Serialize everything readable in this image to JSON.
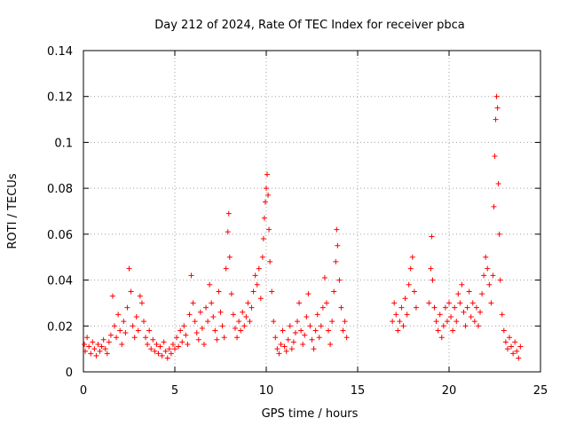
{
  "chart_data": {
    "type": "scatter",
    "title": "Day 212 of 2024, Rate Of TEC Index for receiver pbca",
    "xlabel": "GPS time / hours",
    "ylabel": "ROTI / TECUs",
    "xlim": [
      0,
      25
    ],
    "ylim": [
      0,
      0.14
    ],
    "x_ticks": [
      "0",
      "5",
      "10",
      "15",
      "20",
      "25"
    ],
    "y_ticks": [
      "0",
      "0.02",
      "0.04",
      "0.06",
      "0.08",
      "0.1",
      "0.12",
      "0.14"
    ],
    "grid": true,
    "marker": "+",
    "color": "#ff0000",
    "series": [
      {
        "name": "ROTI",
        "points": [
          [
            0.05,
            0.012
          ],
          [
            0.1,
            0.009
          ],
          [
            0.2,
            0.015
          ],
          [
            0.3,
            0.011
          ],
          [
            0.4,
            0.008
          ],
          [
            0.5,
            0.013
          ],
          [
            0.6,
            0.01
          ],
          [
            0.7,
            0.007
          ],
          [
            0.8,
            0.012
          ],
          [
            0.9,
            0.009
          ],
          [
            1.0,
            0.011
          ],
          [
            1.1,
            0.014
          ],
          [
            1.2,
            0.01
          ],
          [
            1.3,
            0.008
          ],
          [
            1.4,
            0.013
          ],
          [
            1.5,
            0.016
          ],
          [
            1.6,
            0.033
          ],
          [
            1.7,
            0.02
          ],
          [
            1.8,
            0.015
          ],
          [
            1.9,
            0.025
          ],
          [
            2.0,
            0.018
          ],
          [
            2.1,
            0.012
          ],
          [
            2.2,
            0.022
          ],
          [
            2.3,
            0.017
          ],
          [
            2.4,
            0.028
          ],
          [
            2.5,
            0.045
          ],
          [
            2.6,
            0.035
          ],
          [
            2.7,
            0.02
          ],
          [
            2.8,
            0.015
          ],
          [
            2.9,
            0.024
          ],
          [
            3.0,
            0.018
          ],
          [
            3.1,
            0.033
          ],
          [
            3.2,
            0.03
          ],
          [
            3.3,
            0.022
          ],
          [
            3.4,
            0.015
          ],
          [
            3.5,
            0.012
          ],
          [
            3.6,
            0.018
          ],
          [
            3.7,
            0.01
          ],
          [
            3.8,
            0.014
          ],
          [
            3.9,
            0.009
          ],
          [
            4.0,
            0.012
          ],
          [
            4.1,
            0.008
          ],
          [
            4.2,
            0.011
          ],
          [
            4.3,
            0.007
          ],
          [
            4.4,
            0.013
          ],
          [
            4.5,
            0.009
          ],
          [
            4.6,
            0.006
          ],
          [
            4.7,
            0.01
          ],
          [
            4.8,
            0.008
          ],
          [
            4.9,
            0.012
          ],
          [
            5.0,
            0.01
          ],
          [
            5.1,
            0.015
          ],
          [
            5.2,
            0.011
          ],
          [
            5.3,
            0.018
          ],
          [
            5.4,
            0.013
          ],
          [
            5.5,
            0.02
          ],
          [
            5.6,
            0.016
          ],
          [
            5.7,
            0.012
          ],
          [
            5.8,
            0.025
          ],
          [
            5.9,
            0.042
          ],
          [
            6.0,
            0.03
          ],
          [
            6.1,
            0.022
          ],
          [
            6.2,
            0.017
          ],
          [
            6.3,
            0.014
          ],
          [
            6.4,
            0.026
          ],
          [
            6.5,
            0.019
          ],
          [
            6.6,
            0.012
          ],
          [
            6.7,
            0.028
          ],
          [
            6.8,
            0.022
          ],
          [
            6.9,
            0.038
          ],
          [
            7.0,
            0.03
          ],
          [
            7.1,
            0.024
          ],
          [
            7.2,
            0.018
          ],
          [
            7.3,
            0.014
          ],
          [
            7.4,
            0.035
          ],
          [
            7.5,
            0.026
          ],
          [
            7.6,
            0.02
          ],
          [
            7.7,
            0.015
          ],
          [
            7.8,
            0.045
          ],
          [
            7.9,
            0.061
          ],
          [
            7.95,
            0.069
          ],
          [
            8.0,
            0.05
          ],
          [
            8.1,
            0.034
          ],
          [
            8.2,
            0.025
          ],
          [
            8.3,
            0.019
          ],
          [
            8.4,
            0.015
          ],
          [
            8.5,
            0.022
          ],
          [
            8.6,
            0.018
          ],
          [
            8.7,
            0.026
          ],
          [
            8.8,
            0.02
          ],
          [
            8.9,
            0.024
          ],
          [
            9.0,
            0.03
          ],
          [
            9.1,
            0.022
          ],
          [
            9.2,
            0.028
          ],
          [
            9.3,
            0.035
          ],
          [
            9.4,
            0.042
          ],
          [
            9.5,
            0.038
          ],
          [
            9.6,
            0.045
          ],
          [
            9.7,
            0.032
          ],
          [
            9.8,
            0.05
          ],
          [
            9.85,
            0.058
          ],
          [
            9.9,
            0.067
          ],
          [
            9.95,
            0.074
          ],
          [
            10.0,
            0.08
          ],
          [
            10.05,
            0.086
          ],
          [
            10.1,
            0.077
          ],
          [
            10.15,
            0.062
          ],
          [
            10.2,
            0.048
          ],
          [
            10.3,
            0.035
          ],
          [
            10.4,
            0.022
          ],
          [
            10.5,
            0.015
          ],
          [
            10.6,
            0.01
          ],
          [
            10.7,
            0.008
          ],
          [
            10.8,
            0.012
          ],
          [
            10.9,
            0.018
          ],
          [
            11.0,
            0.011
          ],
          [
            11.1,
            0.009
          ],
          [
            11.2,
            0.014
          ],
          [
            11.3,
            0.02
          ],
          [
            11.4,
            0.01
          ],
          [
            11.5,
            0.013
          ],
          [
            11.6,
            0.017
          ],
          [
            11.7,
            0.022
          ],
          [
            11.8,
            0.03
          ],
          [
            11.9,
            0.018
          ],
          [
            12.0,
            0.012
          ],
          [
            12.1,
            0.016
          ],
          [
            12.2,
            0.024
          ],
          [
            12.3,
            0.034
          ],
          [
            12.4,
            0.02
          ],
          [
            12.5,
            0.014
          ],
          [
            12.6,
            0.01
          ],
          [
            12.7,
            0.018
          ],
          [
            12.8,
            0.025
          ],
          [
            12.9,
            0.015
          ],
          [
            13.0,
            0.02
          ],
          [
            13.1,
            0.028
          ],
          [
            13.2,
            0.041
          ],
          [
            13.3,
            0.03
          ],
          [
            13.4,
            0.018
          ],
          [
            13.5,
            0.012
          ],
          [
            13.6,
            0.022
          ],
          [
            13.7,
            0.035
          ],
          [
            13.8,
            0.048
          ],
          [
            13.85,
            0.062
          ],
          [
            13.9,
            0.055
          ],
          [
            14.0,
            0.04
          ],
          [
            14.1,
            0.028
          ],
          [
            14.2,
            0.018
          ],
          [
            14.3,
            0.022
          ],
          [
            14.4,
            0.015
          ],
          [
            16.9,
            0.022
          ],
          [
            17.0,
            0.03
          ],
          [
            17.1,
            0.025
          ],
          [
            17.2,
            0.018
          ],
          [
            17.3,
            0.022
          ],
          [
            17.4,
            0.028
          ],
          [
            17.5,
            0.02
          ],
          [
            17.6,
            0.032
          ],
          [
            17.7,
            0.025
          ],
          [
            17.8,
            0.038
          ],
          [
            17.9,
            0.045
          ],
          [
            18.0,
            0.05
          ],
          [
            18.1,
            0.035
          ],
          [
            18.2,
            0.028
          ],
          [
            18.9,
            0.03
          ],
          [
            19.0,
            0.045
          ],
          [
            19.05,
            0.059
          ],
          [
            19.1,
            0.04
          ],
          [
            19.2,
            0.028
          ],
          [
            19.3,
            0.022
          ],
          [
            19.4,
            0.018
          ],
          [
            19.5,
            0.025
          ],
          [
            19.6,
            0.015
          ],
          [
            19.7,
            0.02
          ],
          [
            19.8,
            0.028
          ],
          [
            19.9,
            0.022
          ],
          [
            20.0,
            0.03
          ],
          [
            20.1,
            0.024
          ],
          [
            20.2,
            0.018
          ],
          [
            20.3,
            0.028
          ],
          [
            20.4,
            0.022
          ],
          [
            20.5,
            0.034
          ],
          [
            20.6,
            0.03
          ],
          [
            20.7,
            0.038
          ],
          [
            20.8,
            0.026
          ],
          [
            20.9,
            0.02
          ],
          [
            21.0,
            0.028
          ],
          [
            21.1,
            0.035
          ],
          [
            21.2,
            0.024
          ],
          [
            21.3,
            0.03
          ],
          [
            21.4,
            0.022
          ],
          [
            21.5,
            0.028
          ],
          [
            21.6,
            0.02
          ],
          [
            21.7,
            0.026
          ],
          [
            21.8,
            0.034
          ],
          [
            21.9,
            0.042
          ],
          [
            22.0,
            0.05
          ],
          [
            22.1,
            0.045
          ],
          [
            22.2,
            0.038
          ],
          [
            22.3,
            0.03
          ],
          [
            22.4,
            0.042
          ],
          [
            22.45,
            0.072
          ],
          [
            22.5,
            0.094
          ],
          [
            22.55,
            0.11
          ],
          [
            22.6,
            0.12
          ],
          [
            22.65,
            0.115
          ],
          [
            22.7,
            0.082
          ],
          [
            22.75,
            0.06
          ],
          [
            22.8,
            0.04
          ],
          [
            22.9,
            0.025
          ],
          [
            23.0,
            0.018
          ],
          [
            23.1,
            0.013
          ],
          [
            23.2,
            0.01
          ],
          [
            23.3,
            0.015
          ],
          [
            23.4,
            0.011
          ],
          [
            23.5,
            0.008
          ],
          [
            23.6,
            0.013
          ],
          [
            23.7,
            0.009
          ],
          [
            23.8,
            0.006
          ],
          [
            23.9,
            0.011
          ]
        ]
      }
    ]
  }
}
